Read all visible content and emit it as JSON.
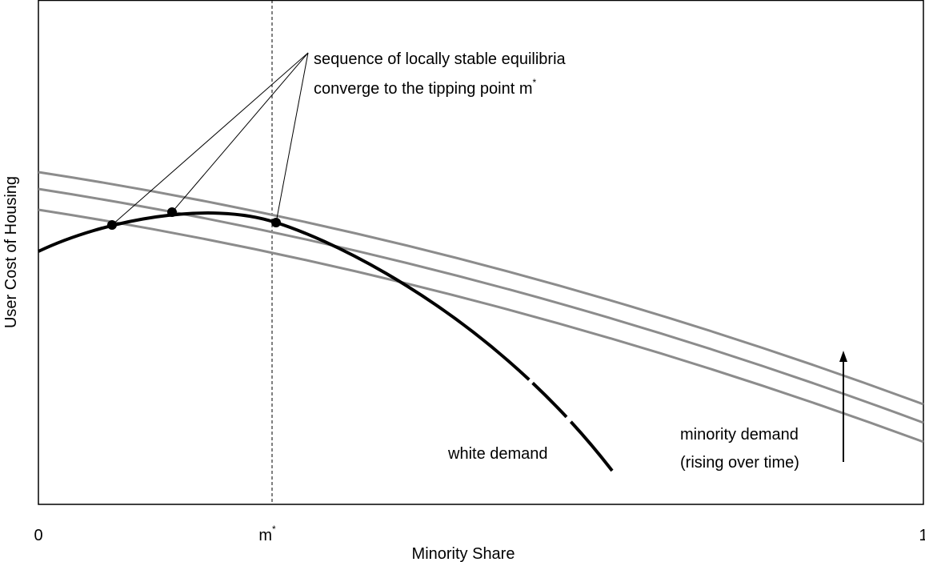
{
  "axes": {
    "y_label": "User Cost of Housing",
    "x_label": "Minority Share",
    "x_ticks": [
      {
        "text": "0"
      },
      {
        "text": "m",
        "sup": "*"
      },
      {
        "text": "1"
      }
    ]
  },
  "annotations": {
    "equilibria": [
      "sequence of locally stable equilibria",
      {
        "text": "converge to the tipping point m",
        "sup": "*"
      }
    ],
    "white_demand": "white demand",
    "minority_demand": [
      "minority demand",
      "(rising over time)"
    ]
  }
}
